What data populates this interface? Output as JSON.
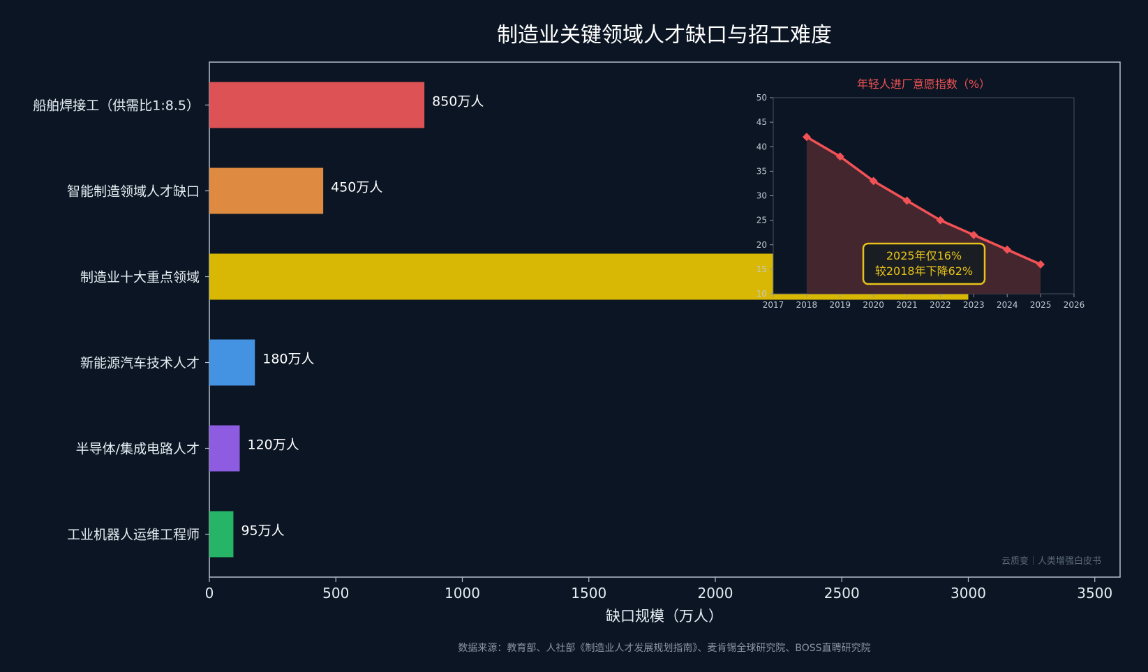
{
  "chart_data": [
    {
      "type": "bar",
      "orientation": "horizontal",
      "title": "制造业关键领域人才缺口与招工难度",
      "xlabel": "缺口规模（万人）",
      "ylabel": "",
      "xlim": [
        0,
        3600
      ],
      "x_ticks": [
        0,
        500,
        1000,
        1500,
        2000,
        2500,
        3000,
        3500
      ],
      "grid": false,
      "categories": [
        "船舶焊接工（供需比1:8.5）",
        "智能制造领域人才缺口",
        "制造业十大重点领域",
        "新能源汽车技术人才",
        "半导体/集成电路人才",
        "工业机器人运维工程师"
      ],
      "values": [
        850,
        450,
        3000,
        180,
        120,
        95
      ],
      "value_labels": [
        "850万人",
        "450万人",
        "",
        "180万人",
        "120万人",
        "95万人"
      ],
      "colors": [
        "#dd5255",
        "#de8a40",
        "#d8b705",
        "#4493e2",
        "#8e5ce0",
        "#26b466"
      ]
    },
    {
      "type": "area",
      "title": "年轻人进厂意愿指数（%）",
      "x": [
        2018,
        2019,
        2020,
        2021,
        2022,
        2023,
        2024,
        2025
      ],
      "y": [
        42,
        38,
        33,
        29,
        25,
        22,
        19,
        16
      ],
      "xlim": [
        2017,
        2026
      ],
      "ylim": [
        10,
        50
      ],
      "x_ticks": [
        2017,
        2018,
        2019,
        2020,
        2021,
        2022,
        2023,
        2024,
        2025,
        2026
      ],
      "y_ticks": [
        10,
        15,
        20,
        25,
        30,
        35,
        40,
        45,
        50
      ],
      "annotation": [
        "2025年仅16%",
        "较2018年下降62%"
      ],
      "line_color": "#f25255",
      "fill_color": "#4a2830",
      "annotation_color": "#e8c21a"
    }
  ],
  "watermark": "云质变｜人类增强白皮书",
  "source": "数据来源：教育部、人社部《制造业人才发展规划指南》、麦肯锡全球研究院、BOSS直聘研究院"
}
